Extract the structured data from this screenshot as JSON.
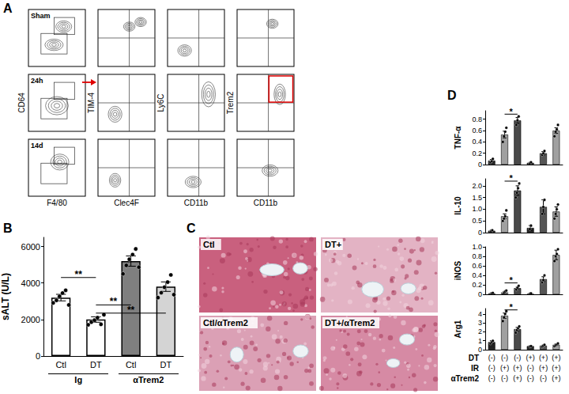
{
  "chart_data": [
    {
      "type": "bar",
      "panel": "B",
      "y_label": "sALT (U/L)",
      "categories": [
        "Ctl",
        "DT",
        "Ctl",
        "DT"
      ],
      "category_groups": [
        "Ig",
        "Ig",
        "αTrem2",
        "αTrem2"
      ],
      "values": [
        3200,
        2000,
        5200,
        3800
      ],
      "errors": [
        180,
        150,
        280,
        260
      ],
      "points": [
        [
          2950,
          3100,
          3300,
          3450,
          3600,
          2800
        ],
        [
          1750,
          1900,
          2000,
          2100,
          1800,
          2300
        ],
        [
          4500,
          5000,
          5300,
          5600,
          5900,
          4900
        ],
        [
          3200,
          3500,
          3800,
          4100,
          4500,
          3400
        ]
      ],
      "colors": [
        "#ffffff",
        "#ffffff",
        "#7f7f7f",
        "#d4d4d4"
      ],
      "significance": [
        {
          "from": 0,
          "to": 1,
          "y": 4300,
          "label": "**"
        },
        {
          "from": 1,
          "to": 2,
          "y": 2800,
          "label": "**"
        },
        {
          "from": 1,
          "to": 3,
          "y": 2350,
          "label": "**"
        }
      ],
      "ylim": [
        0,
        6500
      ],
      "yticks": [
        0,
        2000,
        4000,
        6000
      ],
      "grid": false
    },
    {
      "type": "bar",
      "y_label": "TNF-α",
      "categories": [
        null,
        null,
        null,
        null,
        null,
        null
      ],
      "values": [
        0.07,
        0.53,
        0.78,
        0.03,
        0.2,
        0.6
      ],
      "errors": [
        0.02,
        0.06,
        0.05,
        0.01,
        0.03,
        0.05
      ],
      "points": [
        [
          0.04,
          0.06,
          0.1
        ],
        [
          0.4,
          0.5,
          0.58,
          0.65
        ],
        [
          0.7,
          0.78,
          0.85
        ],
        [
          0.02,
          0.04
        ],
        [
          0.17,
          0.2,
          0.24
        ],
        [
          0.5,
          0.58,
          0.62,
          0.7
        ]
      ],
      "colors": [
        "#222222",
        "#a0a0a0",
        "#4a4a4a",
        "#222222",
        "#555555",
        "#a0a0a0"
      ],
      "significance": [
        {
          "from": 1,
          "to": 2,
          "y": 0.89,
          "label": "*"
        }
      ],
      "ylim": [
        0,
        0.95
      ],
      "yticks": [
        0,
        0.2,
        0.4,
        0.6,
        0.8
      ],
      "grid": false,
      "tick_labels": "y"
    },
    {
      "type": "bar",
      "y_label": "IL-10",
      "categories": [
        null,
        null,
        null,
        null,
        null,
        null
      ],
      "values": [
        0.08,
        0.7,
        1.8,
        0.2,
        1.1,
        0.9
      ],
      "errors": [
        0.03,
        0.1,
        0.2,
        0.1,
        0.3,
        0.2
      ],
      "points": [
        [
          0.05,
          0.1
        ],
        [
          0.5,
          0.6,
          0.7,
          0.95
        ],
        [
          1.5,
          1.7,
          1.9,
          2.1
        ],
        [
          0.15,
          0.3
        ],
        [
          0.8,
          1.1,
          1.4
        ],
        [
          0.6,
          0.8,
          1.0,
          1.2
        ]
      ],
      "colors": [
        "#222222",
        "#a0a0a0",
        "#4a4a4a",
        "#222222",
        "#555555",
        "#a0a0a0"
      ],
      "significance": [
        {
          "from": 1,
          "to": 2,
          "y": 2.2,
          "label": "*"
        }
      ],
      "ylim": [
        0,
        2.3
      ],
      "yticks": [
        0,
        0.5,
        {
          "value": 1,
          "label": "1.0"
        },
        1.5,
        {
          "value": 2,
          "label": "2.0"
        }
      ],
      "grid": false,
      "tick_labels": "y"
    },
    {
      "type": "bar",
      "y_label": "iNOS",
      "categories": [
        null,
        null,
        null,
        null,
        null,
        null
      ],
      "values": [
        0.02,
        0.04,
        0.13,
        0.01,
        0.32,
        0.83
      ],
      "errors": [
        0.01,
        0.02,
        0.02,
        0.01,
        0.05,
        0.1
      ],
      "points": [
        [
          0,
          0.02,
          0.03
        ],
        [
          0,
          0.03,
          0.06,
          0.08
        ],
        [
          0.1,
          0.14,
          0.18
        ],
        [
          0.01,
          0.02
        ],
        [
          0.25,
          0.3,
          0.4
        ],
        [
          0.7,
          0.8,
          0.85,
          0.95
        ]
      ],
      "colors": [
        "#222222",
        "#a0a0a0",
        "#4a4a4a",
        "#222222",
        "#555555",
        "#a0a0a0"
      ],
      "significance": [
        {
          "from": 1,
          "to": 2,
          "y": 0.24,
          "label": "*"
        }
      ],
      "ylim": [
        0,
        1
      ],
      "yticks": [
        0,
        0.2,
        0.4,
        0.6,
        0.8,
        {
          "value": 1,
          "label": "1.0"
        }
      ],
      "grid": false,
      "tick_labels": "y"
    },
    {
      "type": "bar",
      "y_label": "Arg1",
      "categories": [
        null,
        null,
        null,
        null,
        null,
        null
      ],
      "values": [
        0.85,
        3.8,
        2.3,
        0.4,
        0.45,
        0.55
      ],
      "errors": [
        0.15,
        0.3,
        0.2,
        0.03,
        0.05,
        0.08
      ],
      "points": [
        [
          0.7,
          0.85,
          1.0
        ],
        [
          3.2,
          3.6,
          4.0,
          4.3
        ],
        [
          1.9,
          2.2,
          2.4,
          2.6
        ],
        [
          0.35,
          0.4
        ],
        [
          0.35,
          0.45,
          0.55
        ],
        [
          0.4,
          0.5,
          0.6,
          0.7
        ]
      ],
      "colors": [
        "#222222",
        "#a0a0a0",
        "#4a4a4a",
        "#222222",
        "#555555",
        "#a0a0a0"
      ],
      "significance": [
        {
          "from": 1,
          "to": 2,
          "y": 4.45,
          "label": "*"
        }
      ],
      "ylim": [
        0,
        4.6
      ],
      "yticks": [
        0,
        1,
        2,
        3,
        4
      ],
      "grid": false,
      "tick_labels": "y"
    }
  ],
  "panel_A": {
    "panel": "A",
    "rows": [
      "Sham",
      "24h",
      "14d"
    ],
    "columns": [
      {
        "x": "F4/80",
        "y": "CD64"
      },
      {
        "x": "Clec4F",
        "y": "TIM-4"
      },
      {
        "x": "CD11b",
        "y": "Ly6C"
      },
      {
        "x": "CD11b",
        "y": "Trem2"
      }
    ]
  },
  "panel_C": {
    "panel": "C",
    "images": [
      "Ctl",
      "DT+",
      "Ctl/αTrem2",
      "DT+/αTrem2"
    ]
  },
  "panel_D": {
    "panel": "D",
    "conditions": [
      {
        "label": "DT",
        "marks": [
          "(-)",
          "(-)",
          "(-)",
          "(+)",
          "(+)",
          "(+)"
        ]
      },
      {
        "label": "IR",
        "marks": [
          "(-)",
          "(+)",
          "(+)",
          "(-)",
          "(+)",
          "(+)"
        ]
      },
      {
        "label": "αTrem2",
        "marks": [
          "(-)",
          "(-)",
          "(+)",
          "(-)",
          "(-)",
          "(+)"
        ]
      }
    ]
  }
}
